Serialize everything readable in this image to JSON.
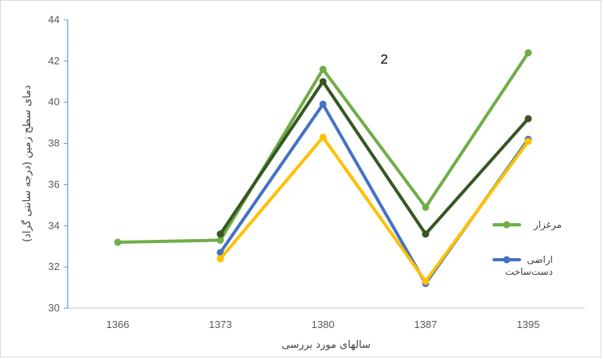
{
  "chart_data": {
    "type": "line",
    "categories": [
      "1366",
      "1373",
      "1380",
      "1387",
      "1395"
    ],
    "ylim": [
      30,
      44
    ],
    "yticks": [
      30,
      32,
      34,
      36,
      38,
      40,
      42,
      44
    ],
    "xlabel": "سالهای مورد بررسی",
    "ylabel": "دمای سطح زمین (درجه سانتی گراد)",
    "annotation": "2",
    "grid": false,
    "legend_position": "right",
    "series": [
      {
        "name": "مرغزار",
        "color": "#70ad47",
        "values": [
          33.2,
          33.3,
          41.6,
          34.9,
          42.4
        ]
      },
      {
        "name": "",
        "color": "#375623",
        "values": [
          null,
          33.6,
          41.0,
          33.6,
          39.2
        ]
      },
      {
        "name": "اراضی دست‌ساخت",
        "color": "#4472c4",
        "values": [
          null,
          32.7,
          39.9,
          31.2,
          38.2
        ]
      },
      {
        "name": "",
        "color": "#ffc000",
        "values": [
          null,
          32.4,
          38.3,
          31.3,
          38.1
        ]
      }
    ]
  }
}
